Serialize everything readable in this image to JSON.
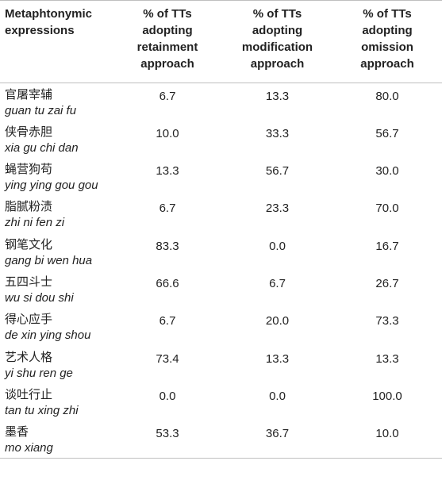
{
  "table": {
    "headers": [
      [
        "Metaphtonymic",
        "expressions"
      ],
      [
        "% of TTs",
        "adopting",
        "retainment",
        "approach"
      ],
      [
        "% of TTs",
        "adopting",
        "modification",
        "approach"
      ],
      [
        "% of TTs",
        "adopting",
        "omission",
        "approach"
      ]
    ],
    "rows": [
      {
        "chinese": "官屠宰辅",
        "pinyin": "guan tu zai fu",
        "retainment": "6.7",
        "modification": "13.3",
        "omission": "80.0"
      },
      {
        "chinese": "侠骨赤胆",
        "pinyin": "xia gu chi dan",
        "retainment": "10.0",
        "modification": "33.3",
        "omission": "56.7"
      },
      {
        "chinese": "蝇营狗苟",
        "pinyin": "ying ying gou gou",
        "retainment": "13.3",
        "modification": "56.7",
        "omission": "30.0"
      },
      {
        "chinese": "脂腻粉渍",
        "pinyin": "zhi ni fen zi",
        "retainment": "6.7",
        "modification": "23.3",
        "omission": "70.0"
      },
      {
        "chinese": "钢笔文化",
        "pinyin": "gang bi wen hua",
        "retainment": "83.3",
        "modification": "0.0",
        "omission": "16.7"
      },
      {
        "chinese": "五四斗士",
        "pinyin": "wu si dou shi",
        "retainment": "66.6",
        "modification": "6.7",
        "omission": "26.7"
      },
      {
        "chinese": "得心应手",
        "pinyin": "de xin ying shou",
        "retainment": "6.7",
        "modification": "20.0",
        "omission": "73.3"
      },
      {
        "chinese": "艺术人格",
        "pinyin": "yi shu ren ge",
        "retainment": "73.4",
        "modification": "13.3",
        "omission": "13.3"
      },
      {
        "chinese": "谈吐行止",
        "pinyin": "tan tu xing zhi",
        "retainment": "0.0",
        "modification": "0.0",
        "omission": "100.0"
      },
      {
        "chinese": "墨香",
        "pinyin": "mo xiang",
        "retainment": "53.3",
        "modification": "36.7",
        "omission": "10.0"
      }
    ]
  }
}
